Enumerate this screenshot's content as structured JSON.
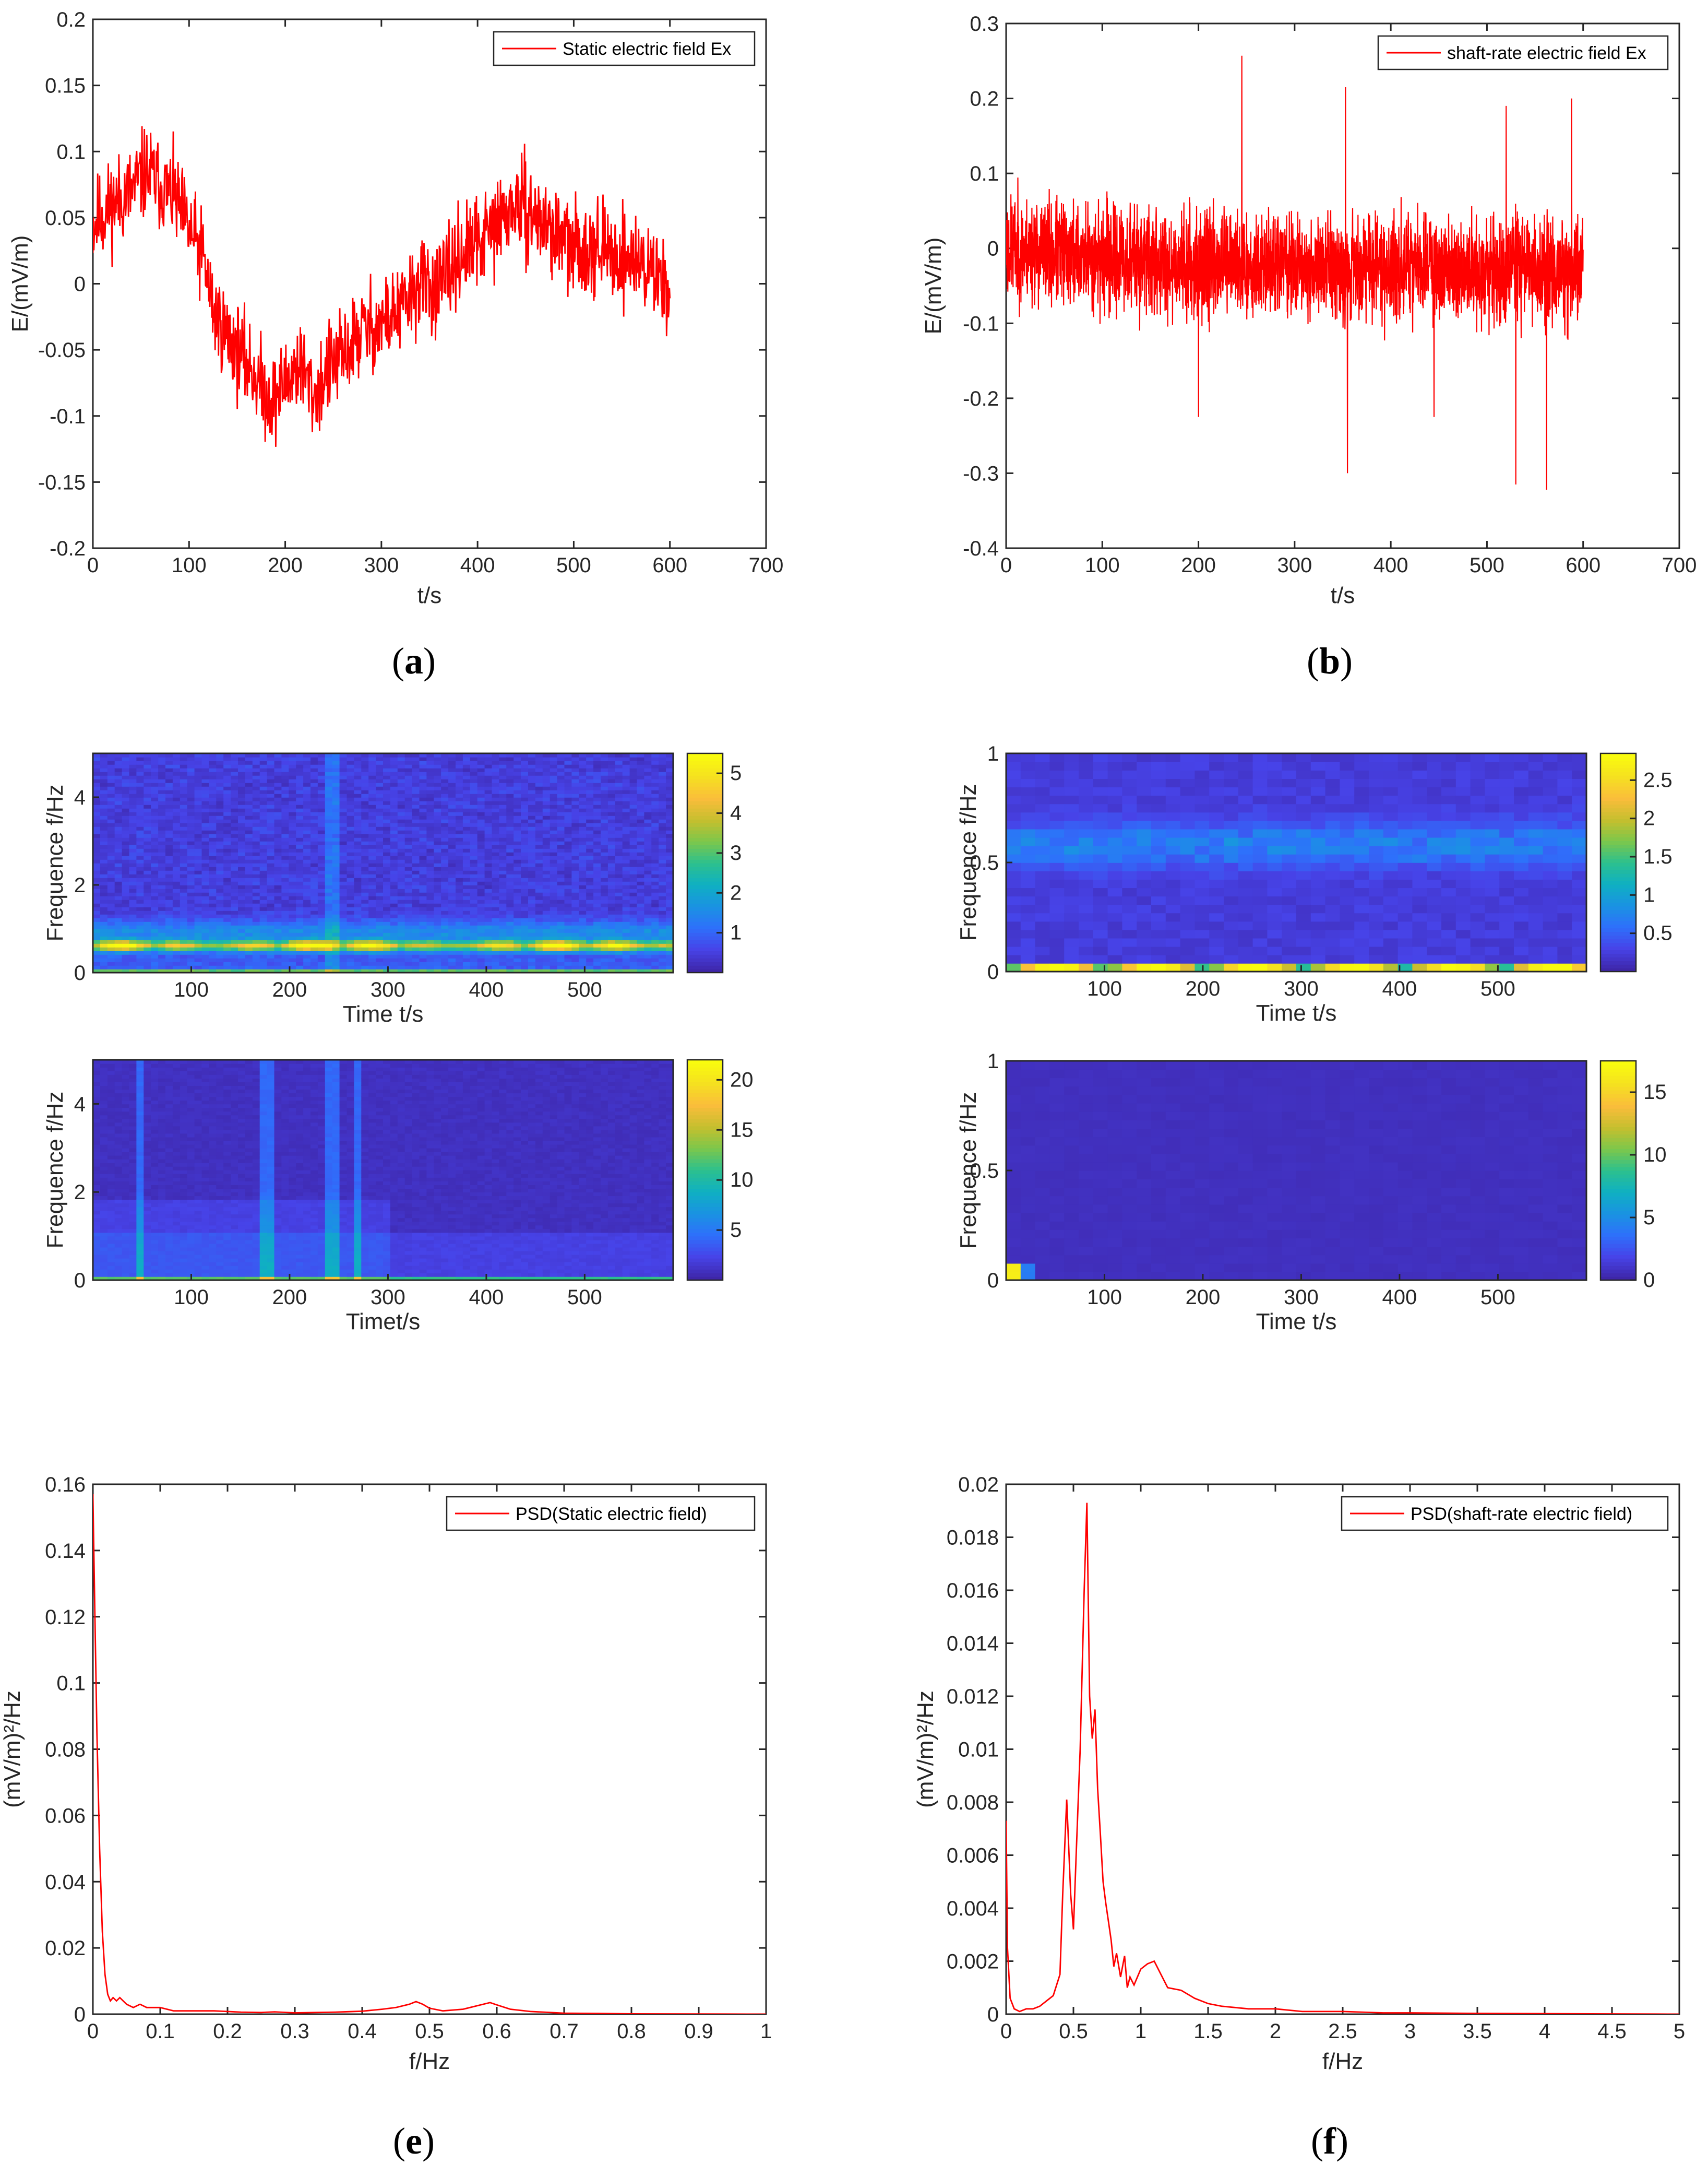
{
  "figure": {
    "background": "#ffffff",
    "trace_color": "#ff0000",
    "colormap": [
      "#3e26a8",
      "#4743e8",
      "#2e70fb",
      "#1a93e2",
      "#0fb0c2",
      "#2cc08e",
      "#7cc74b",
      "#c6bf2e",
      "#fbbd3b",
      "#f5e120",
      "#f9fb0e"
    ]
  },
  "chart_data": [
    {
      "id": "a",
      "type": "line",
      "caption": {
        "open": "(",
        "letter": "a",
        "close": ")"
      },
      "title": "",
      "legend": "Static electric field Ex",
      "xlabel": "t/s",
      "ylabel": "E/(mV/m)",
      "xlim": [
        0,
        700
      ],
      "ylim": [
        -0.2,
        0.2
      ],
      "xticks": [
        0,
        100,
        200,
        300,
        400,
        500,
        600,
        700
      ],
      "xtick_labels": [
        "0",
        "100",
        "200",
        "300",
        "400",
        "500",
        "600",
        "700"
      ],
      "yticks": [
        -0.2,
        -0.15,
        -0.1,
        -0.05,
        0,
        0.05,
        0.1,
        0.15,
        0.2
      ],
      "ytick_labels": [
        "-0.2",
        "-0.15",
        "-0.1",
        "-0.05",
        "0",
        "0.05",
        "0.1",
        "0.15",
        "0.2"
      ],
      "series": [
        {
          "name": "Static electric field Ex",
          "x_range": [
            0,
            600
          ],
          "n": 1200,
          "trend_x": [
            0,
            20,
            40,
            55,
            70,
            85,
            100,
            115,
            125,
            140,
            155,
            170,
            185,
            200,
            215,
            230,
            245,
            260,
            280,
            300,
            320,
            340,
            360,
            380,
            400,
            420,
            440,
            460,
            480,
            500,
            520,
            540,
            560,
            580,
            600
          ],
          "trend_y": [
            0.045,
            0.06,
            0.07,
            0.085,
            0.075,
            0.065,
            0.04,
            0.02,
            -0.02,
            -0.04,
            -0.055,
            -0.07,
            -0.09,
            -0.075,
            -0.06,
            -0.085,
            -0.065,
            -0.055,
            -0.035,
            -0.03,
            -0.02,
            0.0,
            -0.005,
            0.02,
            0.03,
            0.045,
            0.06,
            0.05,
            0.04,
            0.025,
            0.03,
            0.02,
            0.02,
            0.01,
            0.0
          ],
          "noise": 0.03,
          "seed": 11
        }
      ]
    },
    {
      "id": "b",
      "type": "line",
      "caption": {
        "open": "(",
        "letter": "b",
        "close": ")"
      },
      "title": "",
      "legend": "shaft-rate electric field Ex",
      "xlabel": "t/s",
      "ylabel": "E/(mV/m)",
      "xlim": [
        0,
        700
      ],
      "ylim": [
        -0.4,
        0.3
      ],
      "xticks": [
        0,
        100,
        200,
        300,
        400,
        500,
        600,
        700
      ],
      "xtick_labels": [
        "0",
        "100",
        "200",
        "300",
        "400",
        "500",
        "600",
        "700"
      ],
      "yticks": [
        -0.4,
        -0.3,
        -0.2,
        -0.1,
        0,
        0.1,
        0.2,
        0.3
      ],
      "ytick_labels": [
        "-0.4",
        "-0.3",
        "-0.2",
        "-0.1",
        "0",
        "0.1",
        "0.2",
        "0.3"
      ],
      "series": [
        {
          "name": "shaft-rate electric field Ex",
          "x_range": [
            0,
            600
          ],
          "n": 3000,
          "trend_x": [
            0,
            150,
            600
          ],
          "trend_y": [
            0.0,
            -0.02,
            -0.03
          ],
          "noise": 0.06,
          "seed": 23,
          "spikes": [
            [
              245,
              0.257
            ],
            [
              355,
              -0.3
            ],
            [
              353,
              0.215
            ],
            [
              530,
              -0.315
            ],
            [
              562,
              -0.322
            ],
            [
              588,
              0.2
            ],
            [
              200,
              -0.225
            ],
            [
              445,
              -0.225
            ],
            [
              520,
              0.19
            ]
          ]
        }
      ]
    },
    {
      "id": "c_top",
      "type": "heatmap",
      "xlabel": "Time t/s",
      "ylabel": "Frequence f/Hz",
      "xlim": [
        0,
        590
      ],
      "ylim": [
        0,
        5
      ],
      "xticks": [
        100,
        200,
        300,
        400,
        500
      ],
      "xtick_labels": [
        "100",
        "200",
        "300",
        "400",
        "500"
      ],
      "yticks": [
        0,
        2,
        4
      ],
      "ytick_labels": [
        "0",
        "2",
        "4"
      ],
      "cbar_lim": [
        0,
        5.5
      ],
      "cbar_ticks": [
        1,
        2,
        3,
        4,
        5
      ],
      "cbar_tick_labels": [
        "1",
        "2",
        "3",
        "4",
        "5"
      ],
      "pattern": "static_hf"
    },
    {
      "id": "c_bottom",
      "type": "heatmap",
      "xlabel": "Timet/s",
      "ylabel": "Frequence f/Hz",
      "xlim": [
        0,
        590
      ],
      "ylim": [
        0,
        5
      ],
      "xticks": [
        100,
        200,
        300,
        400,
        500
      ],
      "xtick_labels": [
        "100",
        "200",
        "300",
        "400",
        "500"
      ],
      "yticks": [
        0,
        2,
        4
      ],
      "ytick_labels": [
        "0",
        "2",
        "4"
      ],
      "cbar_lim": [
        0,
        22
      ],
      "cbar_ticks": [
        5,
        10,
        15,
        20
      ],
      "cbar_tick_labels": [
        "5",
        "10",
        "15",
        "20"
      ],
      "pattern": "static_lf"
    },
    {
      "id": "d_top",
      "type": "heatmap",
      "xlabel": "Time t/s",
      "ylabel": "Frequence f/Hz",
      "xlim": [
        0,
        590
      ],
      "ylim": [
        0,
        1
      ],
      "xticks": [
        100,
        200,
        300,
        400,
        500
      ],
      "xtick_labels": [
        "100",
        "200",
        "300",
        "400",
        "500"
      ],
      "yticks": [
        0,
        0.5,
        1
      ],
      "ytick_labels": [
        "0",
        "0.5",
        "1"
      ],
      "cbar_lim": [
        0,
        2.85
      ],
      "cbar_ticks": [
        0.5,
        1,
        1.5,
        2,
        2.5
      ],
      "cbar_tick_labels": [
        "0.5",
        "1",
        "1.5",
        "2",
        "2.5"
      ],
      "pattern": "shaft_hf"
    },
    {
      "id": "d_bottom",
      "type": "heatmap",
      "xlabel": "Time t/s",
      "ylabel": "Frequence f/Hz",
      "xlim": [
        0,
        590
      ],
      "ylim": [
        0,
        1
      ],
      "xticks": [
        100,
        200,
        300,
        400,
        500
      ],
      "xtick_labels": [
        "100",
        "200",
        "300",
        "400",
        "500"
      ],
      "yticks": [
        0,
        0.5,
        1
      ],
      "ytick_labels": [
        "0",
        "0.5",
        "1"
      ],
      "cbar_lim": [
        0,
        17.5
      ],
      "cbar_ticks": [
        0,
        5,
        10,
        15
      ],
      "cbar_tick_labels": [
        "0",
        "5",
        "10",
        "15"
      ],
      "pattern": "shaft_lf"
    },
    {
      "id": "e",
      "type": "line",
      "caption": {
        "open": "(",
        "letter": "e",
        "close": ")"
      },
      "legend": "PSD(Static electric field)",
      "xlabel": "f/Hz",
      "ylabel": "(mV/m)²/Hz",
      "xlim": [
        0,
        1
      ],
      "ylim": [
        0,
        0.16
      ],
      "xticks": [
        0,
        0.1,
        0.2,
        0.3,
        0.4,
        0.5,
        0.6,
        0.7,
        0.8,
        0.9,
        1
      ],
      "xtick_labels": [
        "0",
        "0.1",
        "0.2",
        "0.3",
        "0.4",
        "0.5",
        "0.6",
        "0.7",
        "0.8",
        "0.9",
        "1"
      ],
      "yticks": [
        0,
        0.02,
        0.04,
        0.06,
        0.08,
        0.1,
        0.12,
        0.14,
        0.16
      ],
      "ytick_labels": [
        "0",
        "0.02",
        "0.04",
        "0.06",
        "0.08",
        "0.1",
        "0.12",
        "0.14",
        "0.16"
      ],
      "series": [
        {
          "name": "PSD(Static electric field)",
          "x": [
            0,
            0.003,
            0.006,
            0.01,
            0.014,
            0.018,
            0.022,
            0.026,
            0.03,
            0.035,
            0.04,
            0.05,
            0.06,
            0.07,
            0.08,
            0.1,
            0.12,
            0.15,
            0.18,
            0.2,
            0.22,
            0.25,
            0.27,
            0.3,
            0.33,
            0.36,
            0.4,
            0.43,
            0.45,
            0.47,
            0.48,
            0.49,
            0.5,
            0.52,
            0.55,
            0.57,
            0.59,
            0.6,
            0.62,
            0.65,
            0.68,
            0.7,
            0.75,
            0.8,
            0.9,
            1.0
          ],
          "y": [
            0.157,
            0.12,
            0.085,
            0.05,
            0.025,
            0.012,
            0.006,
            0.004,
            0.005,
            0.004,
            0.005,
            0.003,
            0.002,
            0.003,
            0.002,
            0.002,
            0.001,
            0.001,
            0.001,
            0.0008,
            0.0006,
            0.0005,
            0.0007,
            0.0004,
            0.0005,
            0.0006,
            0.0009,
            0.0015,
            0.002,
            0.003,
            0.0038,
            0.003,
            0.0018,
            0.001,
            0.0015,
            0.0025,
            0.0035,
            0.0028,
            0.0015,
            0.0008,
            0.0005,
            0.0003,
            0.0002,
            0.0001,
            5e-05,
            0.0
          ]
        }
      ]
    },
    {
      "id": "f",
      "type": "line",
      "caption": {
        "open": "(",
        "letter": "f",
        "close": ")"
      },
      "legend": "PSD(shaft-rate electric field)",
      "xlabel": "f/Hz",
      "ylabel": "(mV/m)²/Hz",
      "xlim": [
        0,
        5
      ],
      "ylim": [
        0,
        0.02
      ],
      "xticks": [
        0,
        0.5,
        1,
        1.5,
        2,
        2.5,
        3,
        3.5,
        4,
        4.5,
        5
      ],
      "xtick_labels": [
        "0",
        "0.5",
        "1",
        "1.5",
        "2",
        "2.5",
        "3",
        "3.5",
        "4",
        "4.5",
        "5"
      ],
      "yticks": [
        0,
        0.002,
        0.004,
        0.006,
        0.008,
        0.01,
        0.012,
        0.014,
        0.016,
        0.018,
        0.02
      ],
      "ytick_labels": [
        "0",
        "0.002",
        "0.004",
        "0.006",
        "0.008",
        "0.01",
        "0.012",
        "0.014",
        "0.016",
        "0.018",
        "0.02"
      ],
      "series": [
        {
          "name": "PSD(shaft-rate electric field)",
          "x": [
            0,
            0.01,
            0.03,
            0.06,
            0.1,
            0.15,
            0.2,
            0.25,
            0.3,
            0.35,
            0.4,
            0.42,
            0.45,
            0.48,
            0.5,
            0.52,
            0.55,
            0.58,
            0.6,
            0.62,
            0.64,
            0.66,
            0.68,
            0.7,
            0.72,
            0.74,
            0.76,
            0.78,
            0.8,
            0.82,
            0.85,
            0.88,
            0.9,
            0.92,
            0.95,
            1.0,
            1.05,
            1.1,
            1.15,
            1.2,
            1.3,
            1.4,
            1.5,
            1.6,
            1.8,
            2.0,
            2.2,
            2.5,
            2.8,
            3.0,
            3.5,
            4.0,
            4.5,
            5.0
          ],
          "y": [
            0.0073,
            0.0025,
            0.0006,
            0.0002,
            0.0001,
            0.0002,
            0.0002,
            0.0003,
            0.0005,
            0.0007,
            0.0015,
            0.0045,
            0.0081,
            0.0045,
            0.0032,
            0.006,
            0.01,
            0.016,
            0.0193,
            0.012,
            0.0104,
            0.0115,
            0.0085,
            0.0068,
            0.005,
            0.0042,
            0.0035,
            0.0028,
            0.0018,
            0.0023,
            0.0014,
            0.0022,
            0.001,
            0.0014,
            0.0011,
            0.0017,
            0.0019,
            0.002,
            0.0015,
            0.001,
            0.0009,
            0.0006,
            0.0004,
            0.0003,
            0.0002,
            0.0002,
            0.0001,
            0.0001,
            5e-05,
            5e-05,
            3e-05,
            2e-05,
            1e-05,
            0.0
          ]
        }
      ]
    }
  ]
}
